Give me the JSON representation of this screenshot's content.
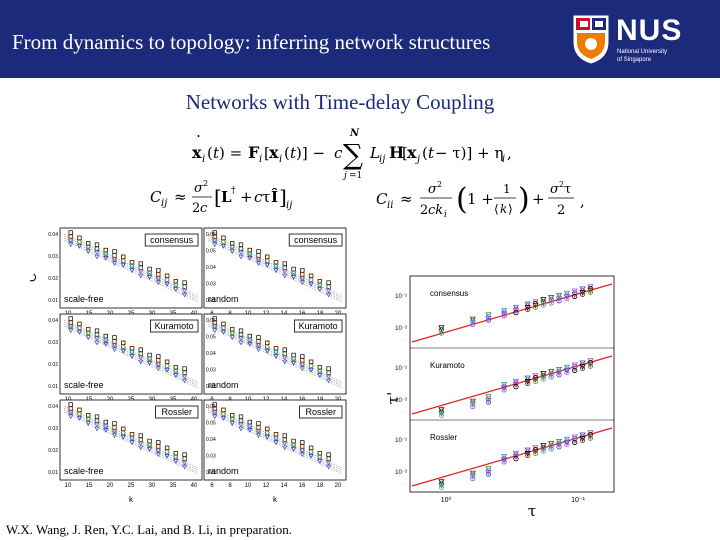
{
  "header": {
    "title": "From dynamics to topology: inferring network structures",
    "logo_text": "NUS",
    "logo_sub_1": "National University",
    "logo_sub_2": "of Singapore",
    "colors": {
      "bar": "#1b2a7a",
      "crest_red": "#c8102e",
      "crest_orange": "#ef7c00"
    }
  },
  "subtitle": "Networks with Time-delay Coupling",
  "equations": {
    "dynamics": "ẋi(t) = Fi[xi(t)] − c Σ j=1..N Lij H[xj(t − τ)] + ηi,",
    "correlation": "Cij ≈ σ²/2c [L† + cτÎ]ij",
    "diagonal": "Cii ≈ σ²/2cki (1 + 1/⟨k⟩) + σ²τ/2 ,"
  },
  "left_panels": {
    "ylabel": "C",
    "ylabel_sub": "ii",
    "xlabel": "k",
    "rows": [
      {
        "model": "consensus",
        "left_network": "scale-free",
        "right_network": "random"
      },
      {
        "model": "Kuramoto",
        "left_network": "scale-free",
        "right_network": "random"
      },
      {
        "model": "Rossler",
        "left_network": "scale-free",
        "right_network": "random"
      }
    ],
    "left_xticks": [
      "10",
      "15",
      "20",
      "25",
      "30",
      "35",
      "40"
    ],
    "right_xticks": [
      "6",
      "8",
      "10",
      "12",
      "14",
      "16",
      "18",
      "20"
    ],
    "left_yticks": [
      "0.04",
      "0.03",
      "0.02",
      "0.01"
    ],
    "right_yticks": [
      "0.06",
      "0.05",
      "0.04",
      "0.03",
      "0.02"
    ]
  },
  "right_plot": {
    "xlabel": "τ",
    "ylabel": "τ'",
    "xticks": [
      "10⁰",
      "10⁻¹"
    ],
    "panels": [
      {
        "label": "consensus",
        "yticks": [
          "10⁻¹",
          "10⁻²"
        ]
      },
      {
        "label": "Kuramoto",
        "yticks": [
          "10⁻¹",
          "10⁻²"
        ]
      },
      {
        "label": "Rossler",
        "yticks": [
          "10⁻¹",
          "10⁻²"
        ]
      }
    ]
  },
  "chart_data": [
    {
      "type": "scatter",
      "title": "",
      "xlabel": "k",
      "ylabel": "Cii",
      "panels": [
        {
          "model": "consensus",
          "network": "scale-free",
          "xlim": [
            5,
            40
          ],
          "ylim": [
            0.0,
            0.045
          ]
        },
        {
          "model": "consensus",
          "network": "random",
          "xlim": [
            5,
            21
          ],
          "ylim": [
            0.01,
            0.06
          ]
        },
        {
          "model": "Kuramoto",
          "network": "scale-free",
          "xlim": [
            5,
            40
          ],
          "ylim": [
            0.0,
            0.045
          ]
        },
        {
          "model": "Kuramoto",
          "network": "random",
          "xlim": [
            5,
            21
          ],
          "ylim": [
            0.01,
            0.06
          ]
        },
        {
          "model": "Rossler",
          "network": "scale-free",
          "xlim": [
            5,
            40
          ],
          "ylim": [
            0.0,
            0.045
          ]
        },
        {
          "model": "Rossler",
          "network": "random",
          "xlim": [
            5,
            21
          ],
          "ylim": [
            0.01,
            0.06
          ]
        }
      ]
    },
    {
      "type": "scatter",
      "title": "",
      "xlabel": "τ",
      "ylabel": "τ'",
      "scale": "log-log",
      "panels": [
        "consensus",
        "Kuramoto",
        "Rossler"
      ]
    }
  ],
  "citation": "W.X. Wang, J. Ren, Y.C. Lai, and B. Li, in preparation."
}
